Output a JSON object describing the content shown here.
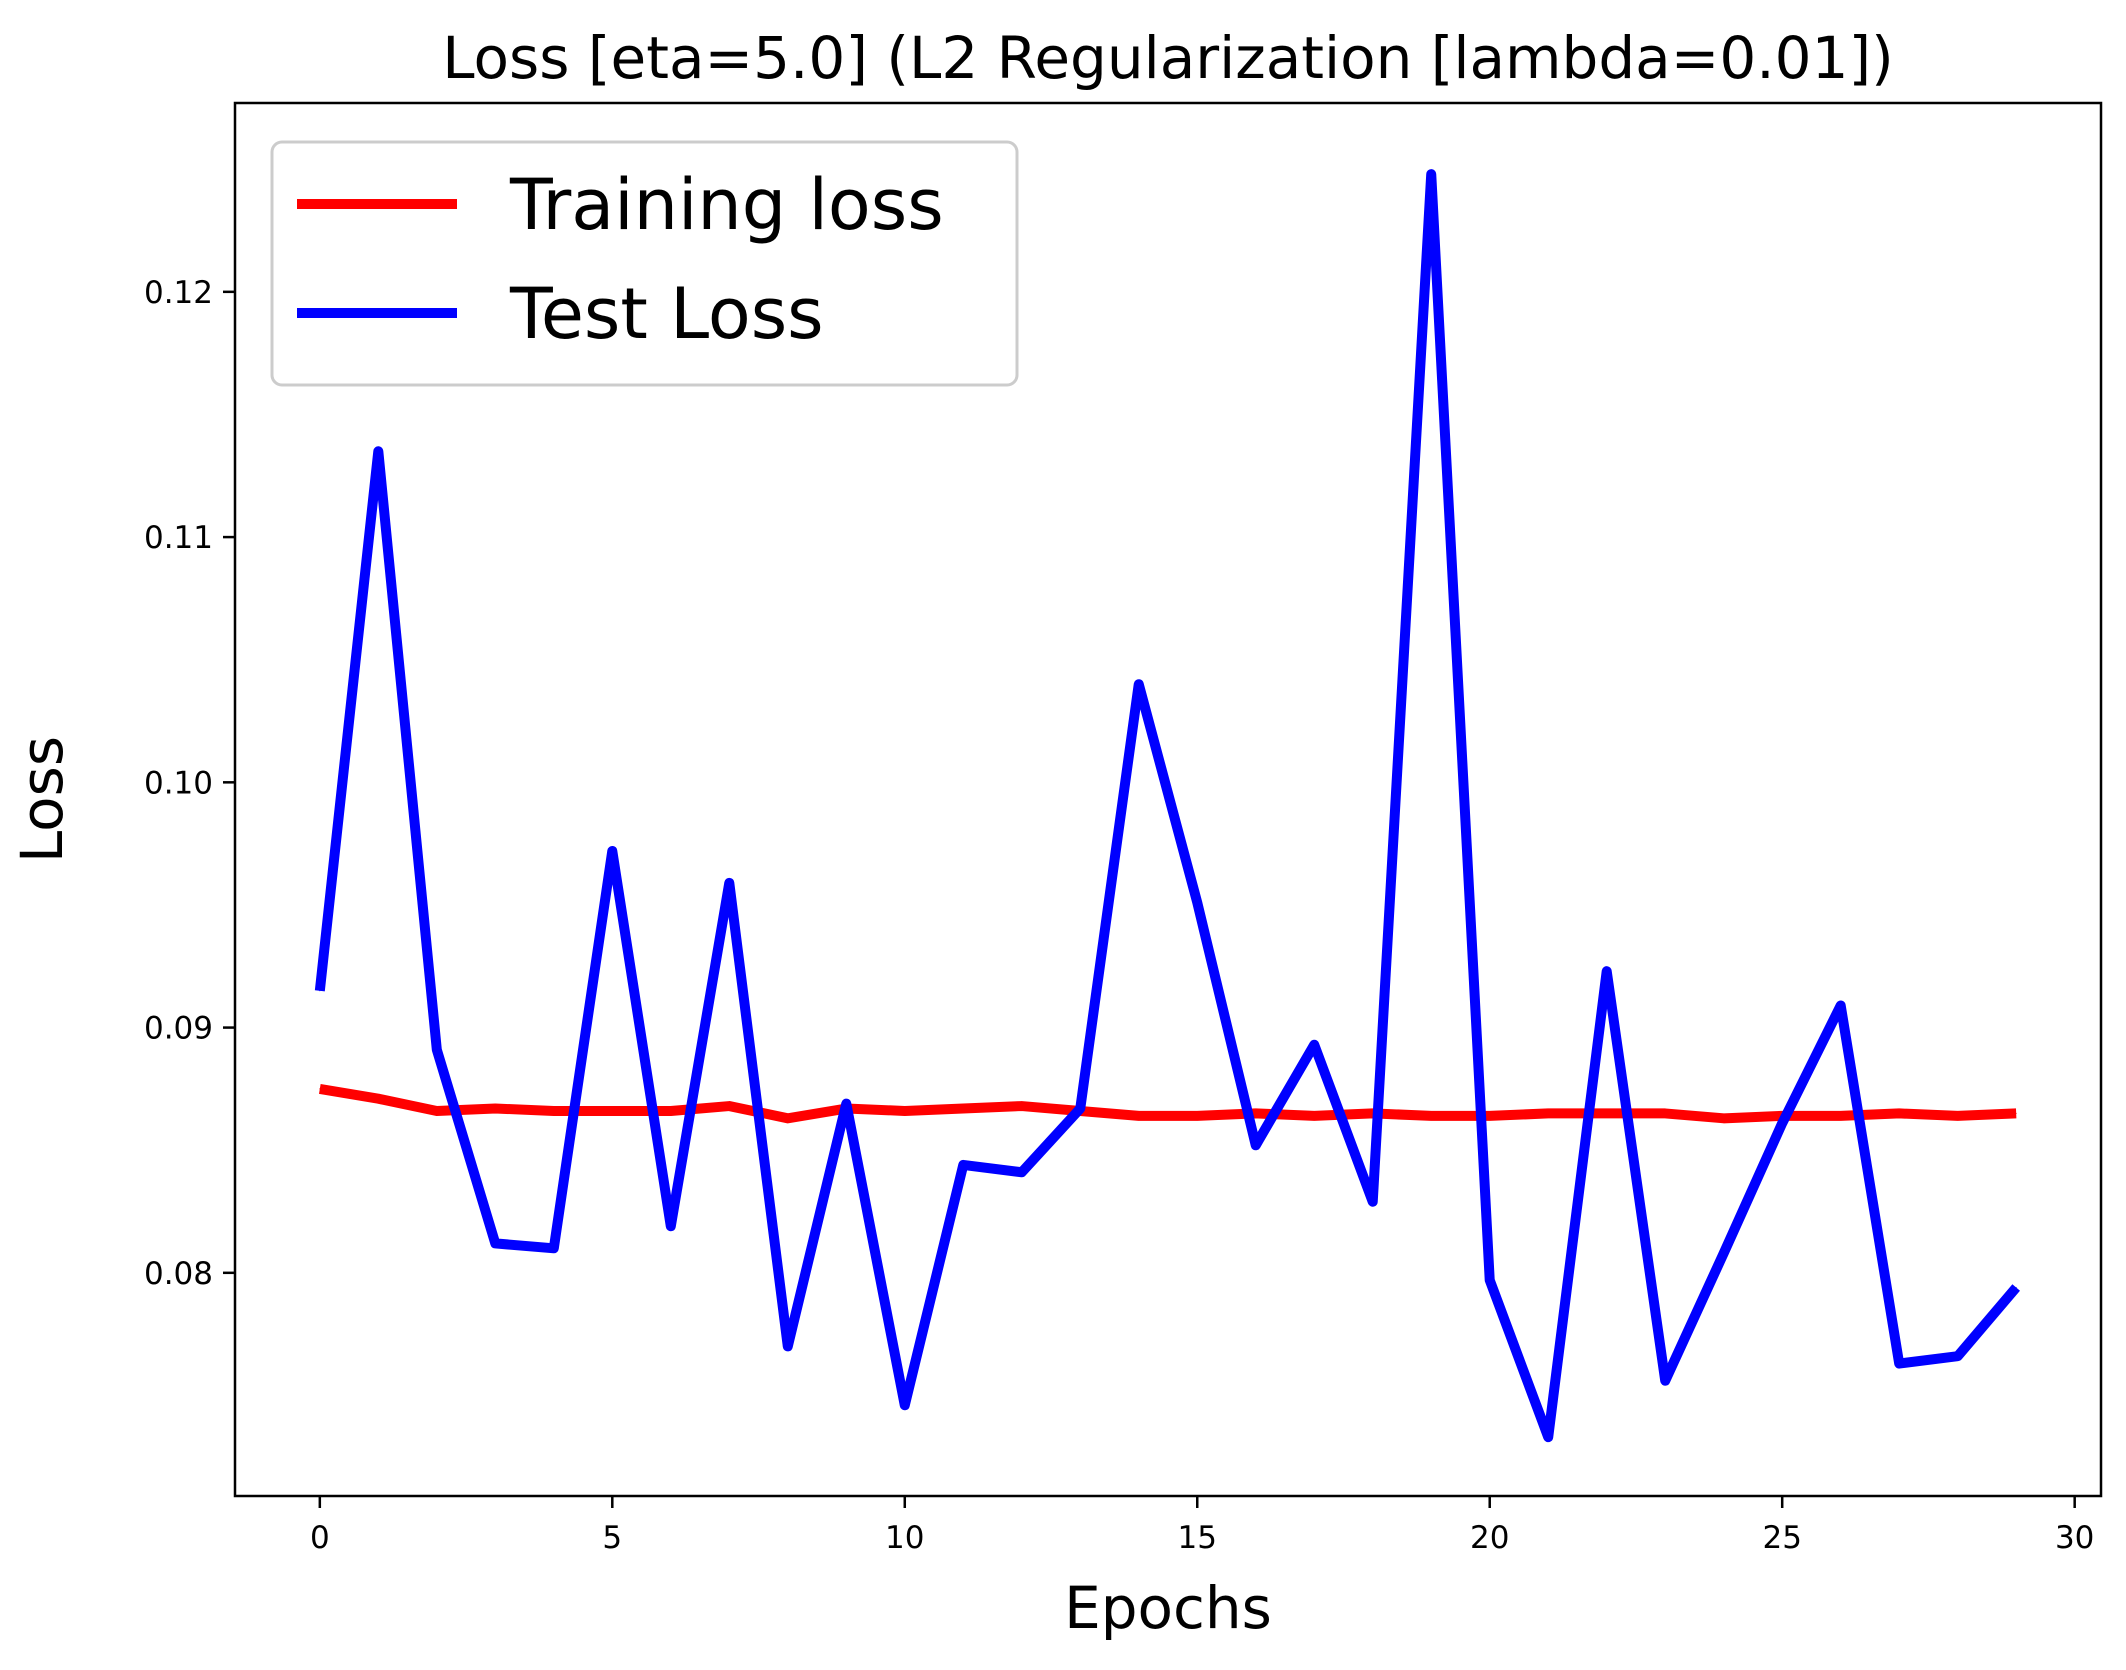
{
  "chart_data": {
    "type": "line",
    "title": "Loss [eta=5.0] (L2 Regularization [lambda=0.01])",
    "xlabel": "Epochs",
    "ylabel": "Loss",
    "xlim": [
      -1.45,
      30.45
    ],
    "ylim": [
      0.0709,
      0.1277
    ],
    "x_ticks": [
      0,
      5,
      10,
      15,
      20,
      25,
      30
    ],
    "x_tick_labels": [
      "0",
      "5",
      "10",
      "15",
      "20",
      "25",
      "30"
    ],
    "y_ticks": [
      0.08,
      0.09,
      0.1,
      0.11,
      0.12
    ],
    "y_tick_labels": [
      "0.08",
      "0.09",
      "0.10",
      "0.11",
      "0.12"
    ],
    "grid": false,
    "legend_position": "top-left",
    "x": [
      0,
      1,
      2,
      3,
      4,
      5,
      6,
      7,
      8,
      9,
      10,
      11,
      12,
      13,
      14,
      15,
      16,
      17,
      18,
      19,
      20,
      21,
      22,
      23,
      24,
      25,
      26,
      27,
      28,
      29
    ],
    "series": [
      {
        "name": "Training loss",
        "color": "#ff0000",
        "values": [
          0.0875,
          0.0871,
          0.0866,
          0.0867,
          0.0866,
          0.0866,
          0.0866,
          0.0868,
          0.0863,
          0.0867,
          0.0866,
          0.0867,
          0.0868,
          0.0866,
          0.0864,
          0.0864,
          0.0865,
          0.0864,
          0.0865,
          0.0864,
          0.0864,
          0.0865,
          0.0865,
          0.0865,
          0.0863,
          0.0864,
          0.0864,
          0.0865,
          0.0864,
          0.0865
        ]
      },
      {
        "name": "Test Loss",
        "color": "#0000ff",
        "values": [
          0.0915,
          0.1135,
          0.0891,
          0.0812,
          0.081,
          0.0972,
          0.0819,
          0.0959,
          0.077,
          0.0869,
          0.0746,
          0.0844,
          0.0841,
          0.0867,
          0.104,
          0.0951,
          0.0852,
          0.0893,
          0.0829,
          0.1248,
          0.0797,
          0.0733,
          0.0923,
          0.0756,
          0.0808,
          0.0861,
          0.0909,
          0.0763,
          0.0766,
          0.0794
        ]
      }
    ]
  }
}
